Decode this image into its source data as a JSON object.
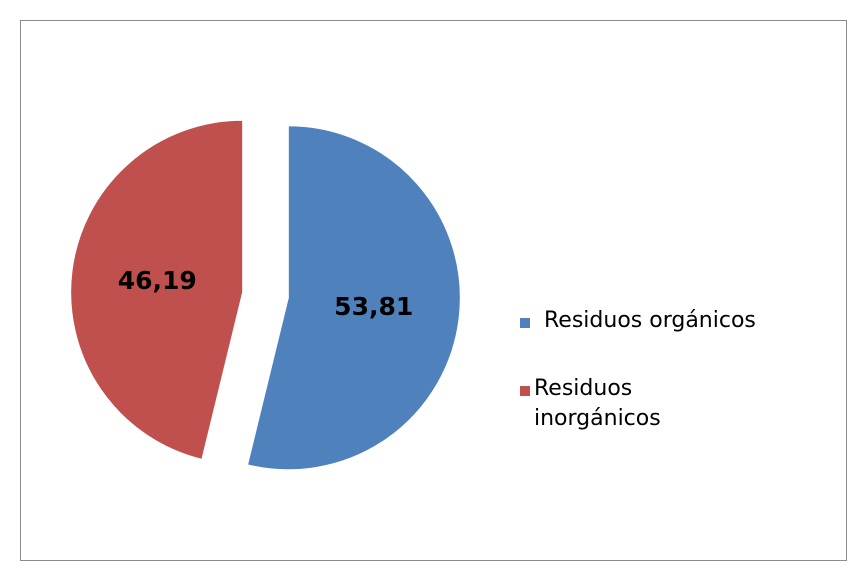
{
  "chart_data": {
    "type": "pie",
    "categories": [
      "Residuos orgánicos",
      "Residuos inorgánicos"
    ],
    "values": [
      53.81,
      46.19
    ],
    "value_labels": [
      "53,81",
      "46,19"
    ],
    "colors": [
      "#4f81bd",
      "#c0504d"
    ],
    "legend": "right"
  }
}
